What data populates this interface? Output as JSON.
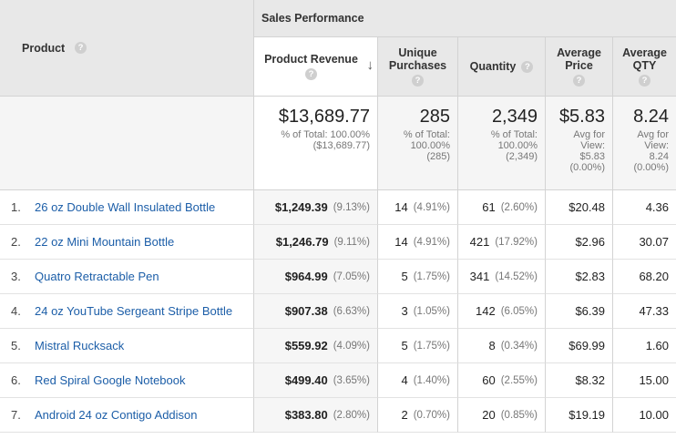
{
  "header": {
    "product_label": "Product",
    "group_label": "Sales Performance",
    "help_glyph": "?",
    "sort_arrow": "↓",
    "columns": [
      {
        "line1": "Product Revenue",
        "line2": ""
      },
      {
        "line1": "Unique",
        "line2": "Purchases"
      },
      {
        "line1": "Quantity",
        "line2": ""
      },
      {
        "line1": "Average",
        "line2": "Price"
      },
      {
        "line1": "Average",
        "line2": "QTY"
      }
    ]
  },
  "totals": {
    "revenue": {
      "value": "$13,689.77",
      "l1": "% of Total: 100.00%",
      "l2": "($13,689.77)"
    },
    "unique": {
      "value": "285",
      "l1": "% of Total:",
      "l2": "100.00%",
      "l3": "(285)"
    },
    "quantity": {
      "value": "2,349",
      "l1": "% of Total:",
      "l2": "100.00%",
      "l3": "(2,349)"
    },
    "avg_price": {
      "value": "$5.83",
      "l1": "Avg for",
      "l2": "View:",
      "l3": "$5.83",
      "l4": "(0.00%)"
    },
    "avg_qty": {
      "value": "8.24",
      "l1": "Avg for",
      "l2": "View:",
      "l3": "8.24",
      "l4": "(0.00%)"
    }
  },
  "rows": [
    {
      "num": "1.",
      "product": "26 oz Double Wall Insulated Bottle",
      "revenue": "$1,249.39",
      "revenue_pct": "(9.13%)",
      "unique": "14",
      "unique_pct": "(4.91%)",
      "qty": "61",
      "qty_pct": "(2.60%)",
      "avg_price": "$20.48",
      "avg_qty": "4.36"
    },
    {
      "num": "2.",
      "product": "22 oz Mini Mountain Bottle",
      "revenue": "$1,246.79",
      "revenue_pct": "(9.11%)",
      "unique": "14",
      "unique_pct": "(4.91%)",
      "qty": "421",
      "qty_pct": "(17.92%)",
      "avg_price": "$2.96",
      "avg_qty": "30.07"
    },
    {
      "num": "3.",
      "product": "Quatro Retractable Pen",
      "revenue": "$964.99",
      "revenue_pct": "(7.05%)",
      "unique": "5",
      "unique_pct": "(1.75%)",
      "qty": "341",
      "qty_pct": "(14.52%)",
      "avg_price": "$2.83",
      "avg_qty": "68.20"
    },
    {
      "num": "4.",
      "product": "24 oz YouTube Sergeant Stripe Bottle",
      "revenue": "$907.38",
      "revenue_pct": "(6.63%)",
      "unique": "3",
      "unique_pct": "(1.05%)",
      "qty": "142",
      "qty_pct": "(6.05%)",
      "avg_price": "$6.39",
      "avg_qty": "47.33"
    },
    {
      "num": "5.",
      "product": "Mistral Rucksack",
      "revenue": "$559.92",
      "revenue_pct": "(4.09%)",
      "unique": "5",
      "unique_pct": "(1.75%)",
      "qty": "8",
      "qty_pct": "(0.34%)",
      "avg_price": "$69.99",
      "avg_qty": "1.60"
    },
    {
      "num": "6.",
      "product": "Red Spiral Google Notebook",
      "revenue": "$499.40",
      "revenue_pct": "(3.65%)",
      "unique": "4",
      "unique_pct": "(1.40%)",
      "qty": "60",
      "qty_pct": "(2.55%)",
      "avg_price": "$8.32",
      "avg_qty": "15.00"
    },
    {
      "num": "7.",
      "product": "Android 24 oz Contigo Addison",
      "revenue": "$383.80",
      "revenue_pct": "(2.80%)",
      "unique": "2",
      "unique_pct": "(0.70%)",
      "qty": "20",
      "qty_pct": "(0.85%)",
      "avg_price": "$19.19",
      "avg_qty": "10.00"
    }
  ]
}
